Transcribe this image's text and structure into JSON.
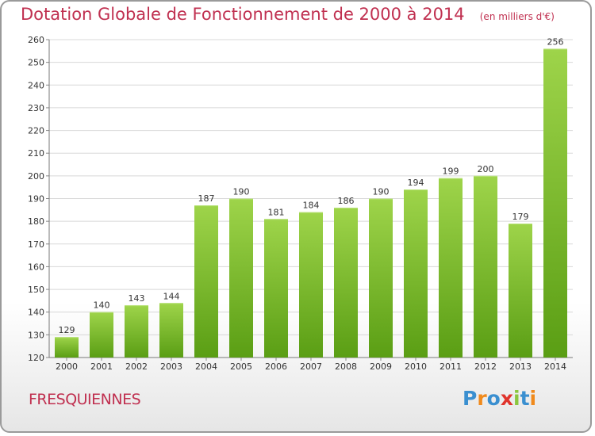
{
  "title": "Dotation Globale de Fonctionnement de 2000 à 2014",
  "subtitle": "(en milliers d'€)",
  "commune": "FRESQUIENNES",
  "logo": {
    "letters": [
      "P",
      "r",
      "o",
      "x",
      "i",
      "t",
      "i"
    ],
    "colors": [
      "#3a8fd0",
      "#f08a1c",
      "#3a8fd0",
      "#e0342c",
      "#8cc63f",
      "#3a8fd0",
      "#f08a1c"
    ]
  },
  "colors": {
    "bar_top": "#9ed44a",
    "bar_bottom": "#5a9e14",
    "grid": "#d8d8d8",
    "title": "#c03050"
  },
  "chart_data": {
    "type": "bar",
    "categories": [
      "2000",
      "2001",
      "2002",
      "2003",
      "2004",
      "2005",
      "2006",
      "2007",
      "2008",
      "2009",
      "2010",
      "2011",
      "2012",
      "2013",
      "2014"
    ],
    "values": [
      129,
      140,
      143,
      144,
      187,
      190,
      181,
      184,
      186,
      190,
      194,
      199,
      200,
      179,
      256
    ],
    "value_labels": [
      "129",
      "140",
      "143",
      "144",
      "187",
      "190",
      "181",
      "184",
      "186",
      "190",
      "194",
      "199",
      "200",
      "179",
      "256"
    ],
    "ylim": [
      120,
      260
    ],
    "yticks": [
      120,
      130,
      140,
      150,
      160,
      170,
      180,
      190,
      200,
      210,
      220,
      230,
      240,
      250,
      260
    ],
    "ytick_labels": [
      "120",
      "130",
      "140",
      "150",
      "160",
      "170",
      "180",
      "190",
      "200",
      "210",
      "220",
      "230",
      "240",
      "250",
      "260"
    ],
    "xlabel": "",
    "ylabel": "",
    "grid": true,
    "legend": "none"
  }
}
